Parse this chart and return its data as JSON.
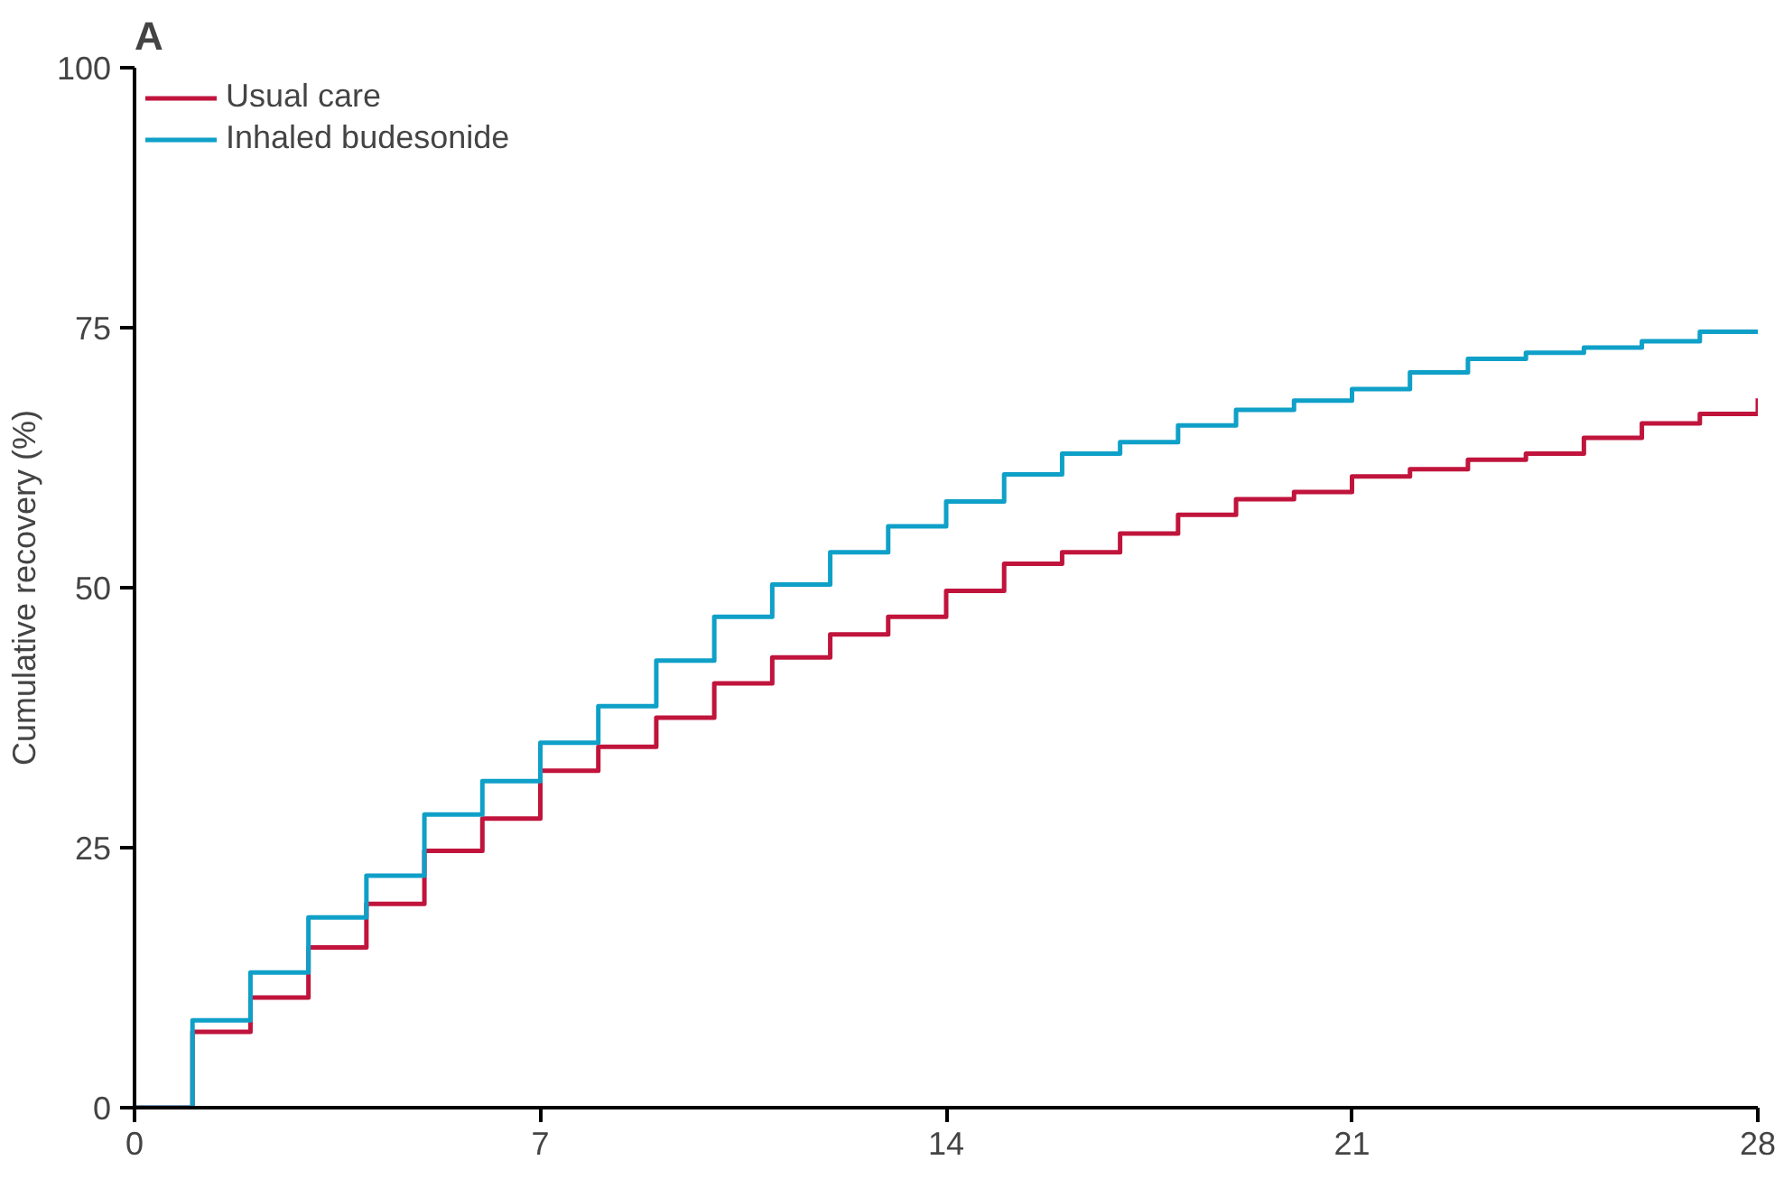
{
  "chart_data": {
    "type": "step",
    "title": "A",
    "ylabel": "Cumulative recovery (%)",
    "x": [
      0,
      1,
      2,
      3,
      4,
      5,
      6,
      7,
      8,
      9,
      10,
      11,
      12,
      13,
      14,
      15,
      16,
      17,
      18,
      19,
      20,
      21,
      22,
      23,
      24,
      25,
      26,
      27,
      28
    ],
    "series": [
      {
        "name": "Usual care",
        "color": "#c0143c",
        "values": [
          0,
          7.3,
          10.6,
          15.4,
          19.6,
          24.7,
          27.8,
          32.4,
          34.7,
          37.5,
          40.8,
          43.3,
          45.5,
          47.2,
          49.7,
          52.3,
          53.4,
          55.2,
          57.0,
          58.5,
          59.2,
          60.7,
          61.4,
          62.3,
          62.9,
          64.4,
          65.8,
          66.7,
          68.2
        ]
      },
      {
        "name": "Inhaled budesonide",
        "color": "#0fa0c8",
        "values": [
          0,
          8.4,
          13.0,
          18.3,
          22.3,
          28.2,
          31.4,
          35.1,
          38.6,
          43.0,
          47.2,
          50.3,
          53.4,
          55.9,
          58.3,
          60.9,
          62.9,
          64.0,
          65.6,
          67.1,
          68.0,
          69.1,
          70.7,
          72.0,
          72.6,
          73.1,
          73.7,
          74.6,
          74.6
        ]
      }
    ],
    "xlim": [
      0,
      28
    ],
    "ylim": [
      0,
      100
    ],
    "xticks": [
      0,
      7,
      14,
      21,
      28
    ],
    "yticks": [
      0,
      25,
      50,
      75,
      100
    ],
    "grid": false,
    "legend": "top left",
    "line_style": "solid"
  }
}
